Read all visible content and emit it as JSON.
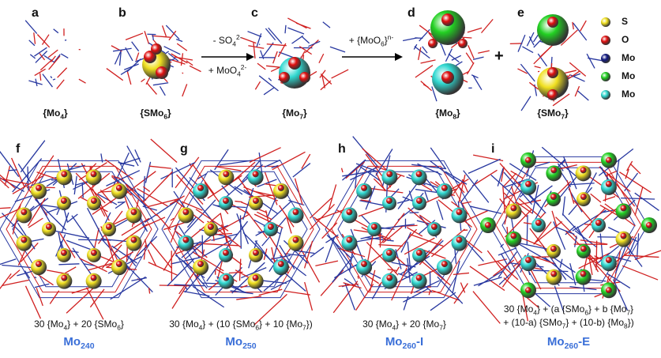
{
  "top": [
    {
      "letter": "a",
      "label": [
        {
          "text": "{Mo"
        },
        {
          "sub": "4"
        },
        {
          "text": "}"
        }
      ]
    },
    {
      "letter": "b",
      "label": [
        {
          "text": "{SMo"
        },
        {
          "sub": "6"
        },
        {
          "text": "}"
        }
      ]
    },
    {
      "letter": "c",
      "label": [
        {
          "text": "{Mo"
        },
        {
          "sub": "7"
        },
        {
          "text": "}"
        }
      ]
    },
    {
      "letter": "d",
      "label": [
        {
          "text": "{Mo"
        },
        {
          "sub": "8"
        },
        {
          "text": "}"
        }
      ]
    },
    {
      "letter": "e",
      "label": [
        {
          "text": "{SMo"
        },
        {
          "sub": "7"
        },
        {
          "text": "}"
        }
      ]
    }
  ],
  "arrows": [
    {
      "above": [
        {
          "text": "- SO"
        },
        {
          "sub": "4"
        },
        {
          "sup": "2-"
        }
      ],
      "below": [
        {
          "text": "+ MoO"
        },
        {
          "sub": "4"
        },
        {
          "sup": "2-"
        }
      ]
    },
    {
      "above": [
        {
          "text": "+ {MoO"
        },
        {
          "sub": "6"
        },
        {
          "text": "}"
        },
        {
          "sup": "n-"
        }
      ]
    }
  ],
  "plus": "+",
  "legend": [
    {
      "symbol": "S",
      "color": "#f0e020"
    },
    {
      "symbol": "O",
      "color": "#e01010"
    },
    {
      "symbol": "Mo",
      "color": "#101880"
    },
    {
      "symbol": "Mo",
      "color": "#22d022"
    },
    {
      "symbol": "Mo",
      "color": "#30d8d0"
    }
  ],
  "bottom": [
    {
      "letter": "f",
      "formula": [
        [
          {
            "text": "30 {Mo"
          },
          {
            "sub": "4"
          },
          {
            "text": "} + 20 {SMo"
          },
          {
            "sub": "6"
          },
          {
            "text": "}"
          }
        ]
      ],
      "name": [
        {
          "text": "Mo"
        },
        {
          "sub": "240"
        }
      ]
    },
    {
      "letter": "g",
      "formula": [
        [
          {
            "text": "30 {Mo"
          },
          {
            "sub": "4"
          },
          {
            "text": "} + (10 {SMo"
          },
          {
            "sub": "6"
          },
          {
            "text": "} + 10 {Mo"
          },
          {
            "sub": "7"
          },
          {
            "text": "})"
          }
        ]
      ],
      "name": [
        {
          "text": "Mo"
        },
        {
          "sub": "250"
        }
      ]
    },
    {
      "letter": "h",
      "formula": [
        [
          {
            "text": "30 {Mo"
          },
          {
            "sub": "4"
          },
          {
            "text": "} + 20 {Mo"
          },
          {
            "sub": "7"
          },
          {
            "text": "}"
          }
        ]
      ],
      "name": [
        {
          "text": "Mo"
        },
        {
          "sub": "260"
        },
        {
          "text": "-I"
        }
      ]
    },
    {
      "letter": "i",
      "formula": [
        [
          {
            "text": "30 {Mo"
          },
          {
            "sub": "4"
          },
          {
            "text": "} + (a {SMo"
          },
          {
            "sub": "6"
          },
          {
            "text": "} + b {Mo"
          },
          {
            "sub": "7"
          },
          {
            "text": "}"
          }
        ],
        [
          {
            "text": "+ (10-a) {SMo"
          },
          {
            "sub": "7"
          },
          {
            "text": "} + (10-b) {Mo"
          },
          {
            "sub": "8"
          },
          {
            "text": "})"
          }
        ]
      ],
      "name": [
        {
          "text": "Mo"
        },
        {
          "sub": "260"
        },
        {
          "text": "-E"
        }
      ]
    }
  ]
}
